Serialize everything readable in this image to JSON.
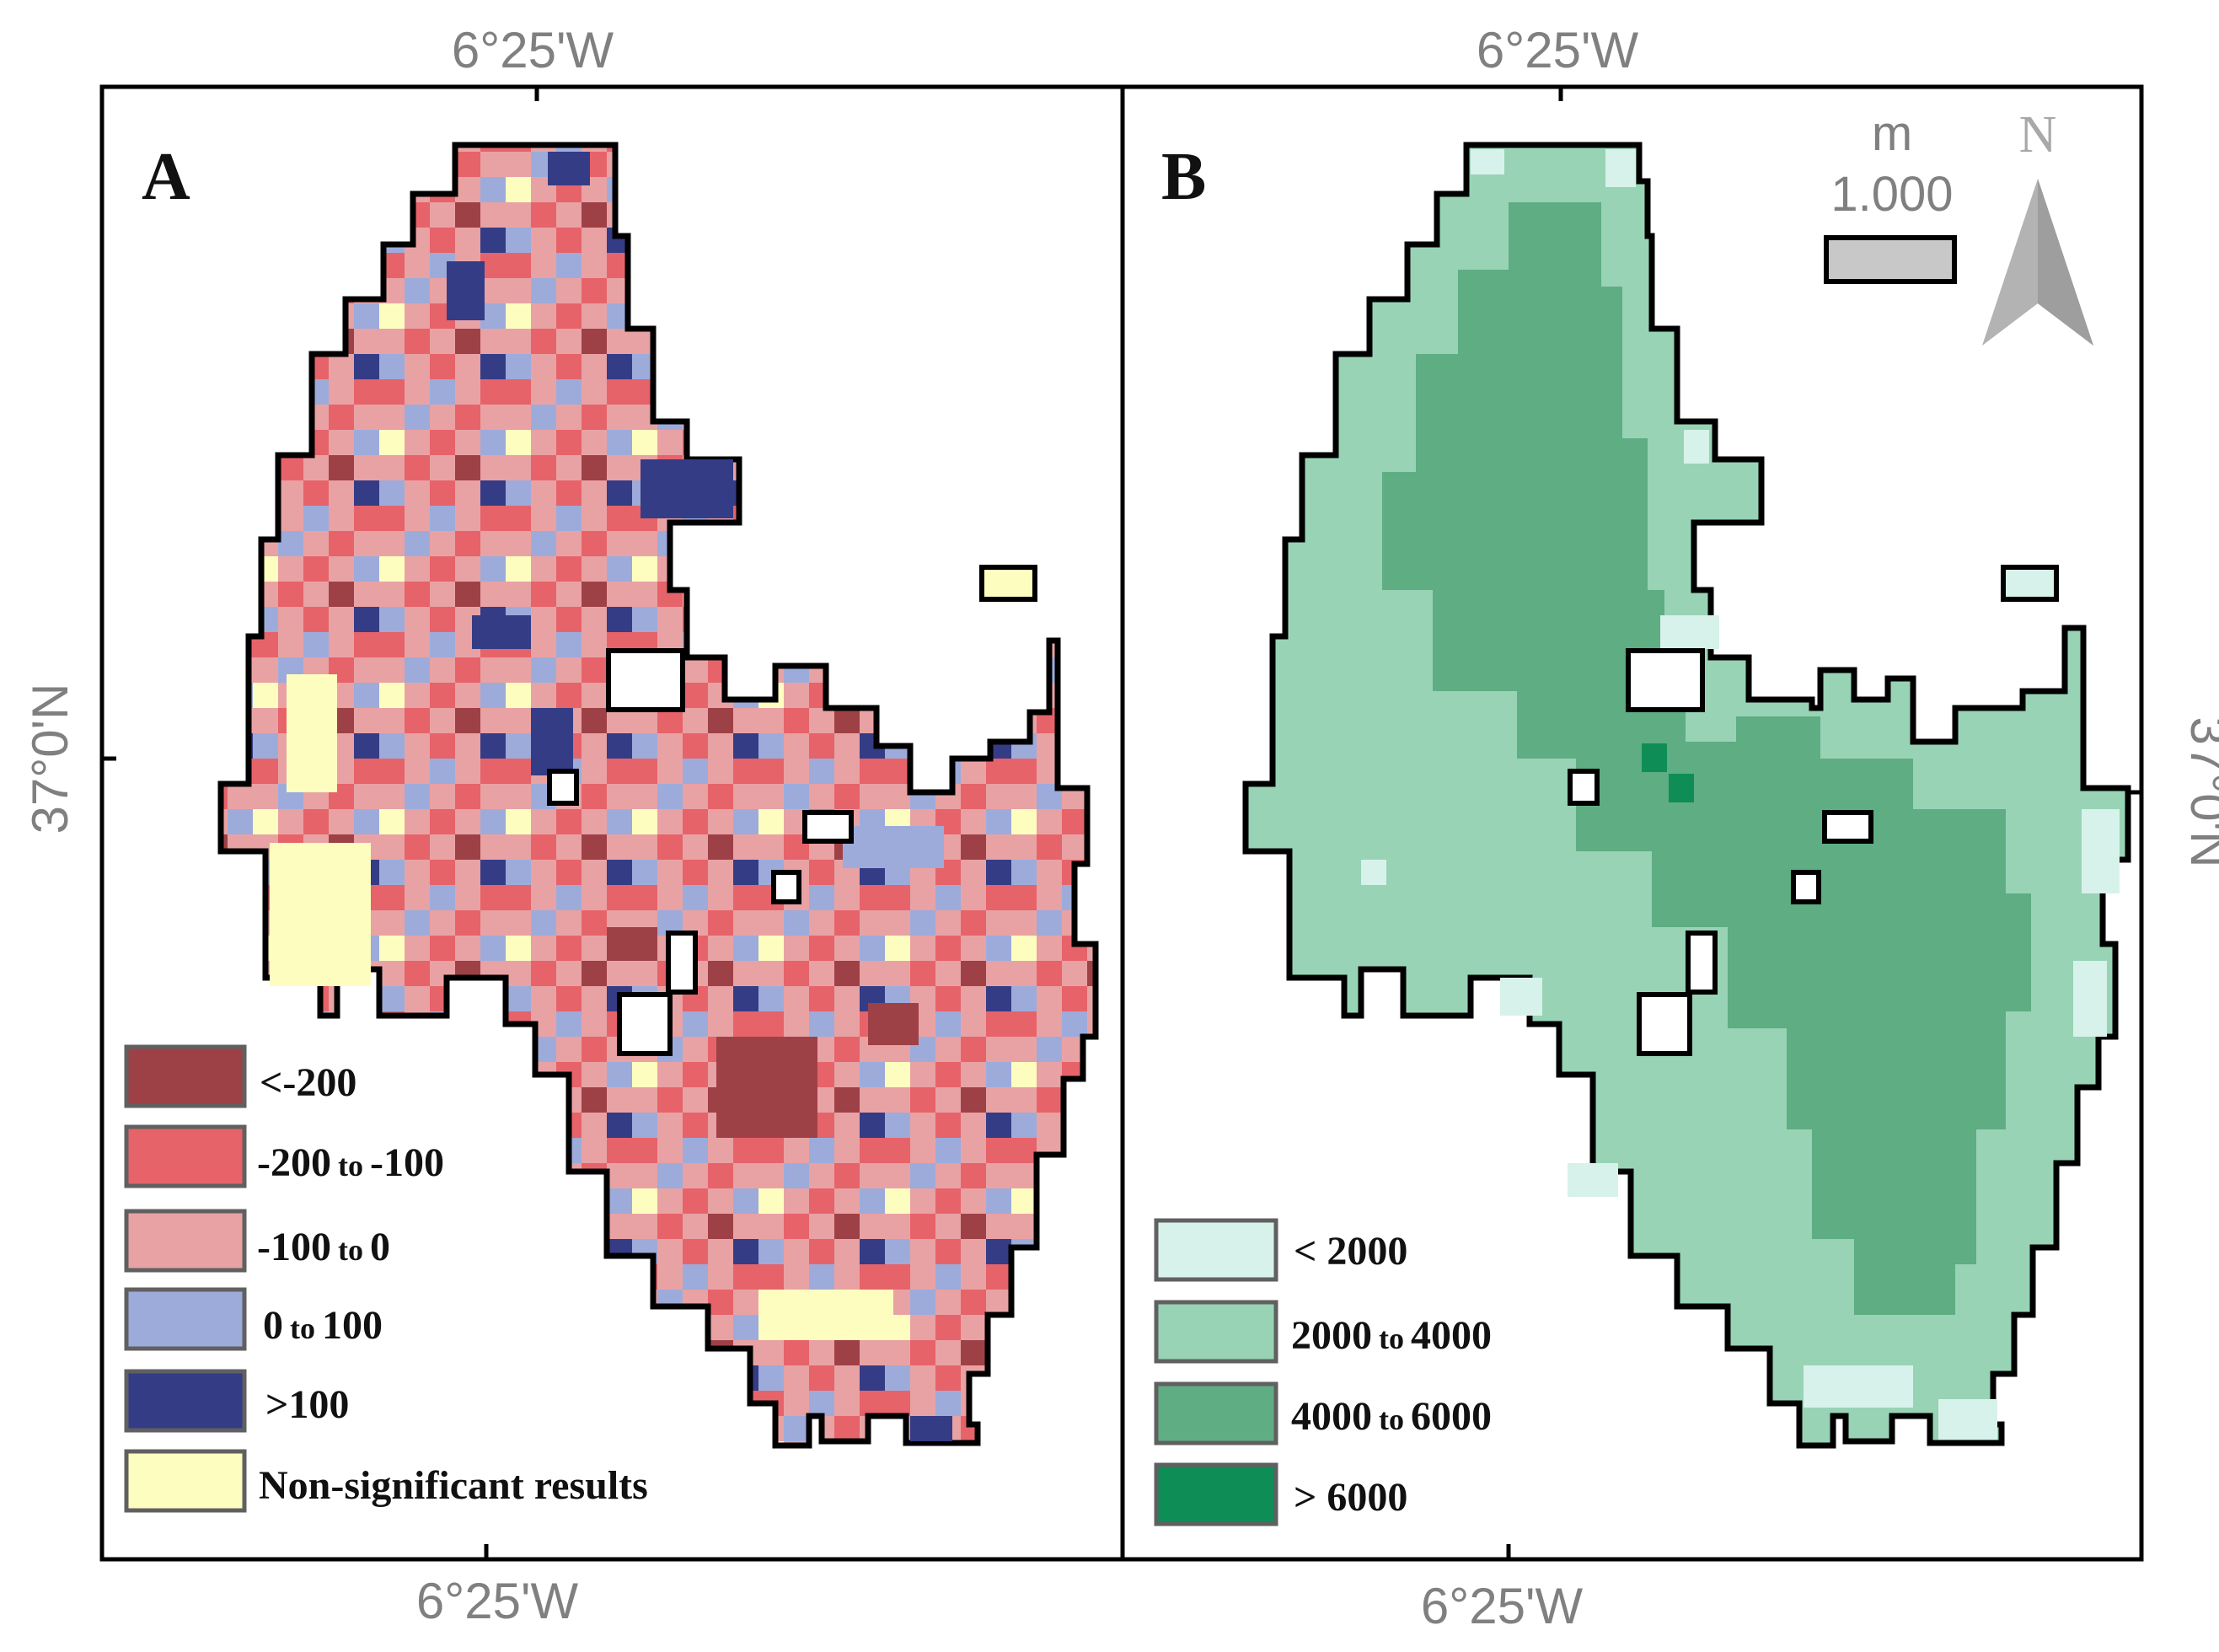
{
  "coordinates": {
    "lon_label": "6°25'W",
    "lat_label": "37°0'N"
  },
  "panel_a": {
    "letter": "A",
    "legend": [
      {
        "lead": "<-200",
        "mid": "",
        "tail": "",
        "color": "#9e4146"
      },
      {
        "lead": "-200",
        "mid": "to",
        "tail": "-100",
        "color": "#e6636a"
      },
      {
        "lead": "-100",
        "mid": "to",
        "tail": "0",
        "color": "#e9a2a4"
      },
      {
        "lead": "0",
        "mid": "to",
        "tail": "100",
        "color": "#9dabdb"
      },
      {
        "lead": ">100",
        "mid": "",
        "tail": "",
        "color": "#343c86"
      },
      {
        "lead": "Non-significant results",
        "mid": "",
        "tail": "",
        "color": "#fefdc0"
      }
    ]
  },
  "panel_b": {
    "letter": "B",
    "legend": [
      {
        "lead": "< 2000",
        "mid": "",
        "tail": "",
        "color": "#d7f2ea"
      },
      {
        "lead": "2000",
        "mid": "to",
        "tail": "4000",
        "color": "#98d3b6"
      },
      {
        "lead": "4000",
        "mid": "to",
        "tail": "6000",
        "color": "#5fad83"
      },
      {
        "lead": "> 6000",
        "mid": "",
        "tail": "",
        "color": "#0e8d57"
      }
    ],
    "scale_bar": {
      "unit": "m",
      "value": "1.000"
    },
    "north_arrow": {
      "label": "N",
      "icon": "north-arrow-icon"
    }
  }
}
